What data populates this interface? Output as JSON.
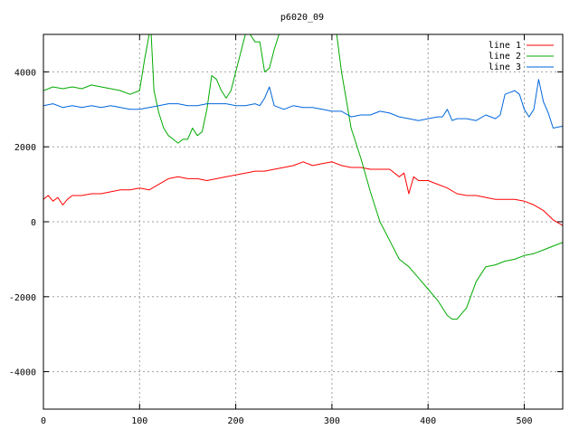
{
  "chart_data": {
    "type": "line",
    "title": "p6020_09",
    "xlabel": "",
    "ylabel": "",
    "xlim": [
      0,
      540
    ],
    "ylim": [
      -5000,
      5000
    ],
    "x_ticks": [
      0,
      100,
      200,
      300,
      400,
      500
    ],
    "y_ticks": [
      -4000,
      -2000,
      0,
      2000,
      4000
    ],
    "grid": true,
    "grid_style": "dotted",
    "legend_position": "top-right",
    "series": [
      {
        "name": "line 1",
        "color": "#ff0000",
        "x": [
          0,
          5,
          10,
          15,
          20,
          25,
          30,
          40,
          50,
          60,
          70,
          80,
          90,
          100,
          110,
          120,
          130,
          140,
          150,
          160,
          170,
          180,
          190,
          200,
          210,
          220,
          230,
          240,
          250,
          260,
          270,
          280,
          290,
          300,
          310,
          320,
          330,
          340,
          350,
          360,
          370,
          375,
          380,
          385,
          390,
          400,
          410,
          420,
          430,
          440,
          450,
          460,
          470,
          480,
          490,
          500,
          510,
          520,
          530,
          540
        ],
        "values": [
          600,
          700,
          550,
          650,
          450,
          600,
          700,
          700,
          750,
          750,
          800,
          850,
          850,
          900,
          850,
          1000,
          1150,
          1200,
          1150,
          1150,
          1100,
          1150,
          1200,
          1250,
          1300,
          1350,
          1350,
          1400,
          1450,
          1500,
          1600,
          1500,
          1550,
          1600,
          1500,
          1450,
          1450,
          1400,
          1400,
          1400,
          1200,
          1300,
          750,
          1200,
          1100,
          1100,
          1000,
          900,
          750,
          700,
          700,
          650,
          600,
          600,
          600,
          550,
          450,
          300,
          50,
          -100
        ]
      },
      {
        "name": "line 2",
        "color": "#00aa00",
        "x": [
          0,
          10,
          20,
          30,
          40,
          50,
          60,
          70,
          80,
          90,
          100,
          105,
          110,
          112,
          115,
          120,
          125,
          130,
          135,
          140,
          145,
          150,
          155,
          160,
          165,
          170,
          175,
          180,
          185,
          190,
          195,
          200,
          205,
          210,
          215,
          220,
          225,
          230,
          235,
          240,
          245,
          250,
          255,
          260,
          270,
          280,
          290,
          295,
          300,
          305,
          310,
          320,
          330,
          340,
          350,
          360,
          370,
          380,
          390,
          400,
          410,
          420,
          425,
          430,
          440,
          450,
          460,
          470,
          480,
          490,
          500,
          510,
          520,
          530,
          540
        ],
        "values": [
          3500,
          3600,
          3550,
          3600,
          3550,
          3650,
          3600,
          3550,
          3500,
          3400,
          3500,
          4300,
          5000,
          5000,
          3500,
          2900,
          2500,
          2300,
          2200,
          2100,
          2200,
          2200,
          2500,
          2300,
          2400,
          3000,
          3900,
          3800,
          3500,
          3300,
          3500,
          4000,
          4500,
          5000,
          5000,
          4800,
          4800,
          4000,
          4100,
          4600,
          5000,
          5000,
          5000,
          5000,
          5000,
          5000,
          5000,
          5000,
          5000,
          5000,
          4000,
          2500,
          1700,
          800,
          0,
          -500,
          -1000,
          -1200,
          -1500,
          -1800,
          -2100,
          -2500,
          -2600,
          -2600,
          -2300,
          -1600,
          -1200,
          -1150,
          -1050,
          -1000,
          -900,
          -850,
          -750,
          -650,
          -550
        ]
      },
      {
        "name": "line 3",
        "color": "#0066dd",
        "x": [
          0,
          10,
          20,
          30,
          40,
          50,
          60,
          70,
          80,
          90,
          100,
          110,
          120,
          130,
          140,
          150,
          160,
          170,
          180,
          190,
          200,
          210,
          220,
          225,
          230,
          235,
          240,
          250,
          260,
          270,
          280,
          290,
          300,
          310,
          320,
          330,
          340,
          350,
          360,
          370,
          380,
          390,
          400,
          410,
          415,
          420,
          425,
          430,
          440,
          450,
          460,
          470,
          475,
          480,
          485,
          490,
          495,
          500,
          505,
          510,
          515,
          520,
          525,
          530,
          540
        ],
        "values": [
          3100,
          3150,
          3050,
          3100,
          3050,
          3100,
          3050,
          3100,
          3050,
          3000,
          3000,
          3050,
          3100,
          3150,
          3150,
          3100,
          3100,
          3150,
          3150,
          3150,
          3100,
          3100,
          3150,
          3100,
          3300,
          3600,
          3100,
          3000,
          3100,
          3050,
          3050,
          3000,
          2950,
          2950,
          2800,
          2850,
          2850,
          2950,
          2900,
          2800,
          2750,
          2700,
          2750,
          2800,
          2800,
          3000,
          2700,
          2750,
          2750,
          2700,
          2850,
          2750,
          2850,
          3400,
          3450,
          3500,
          3400,
          3000,
          2800,
          3000,
          3800,
          3200,
          2900,
          2500,
          2550
        ]
      }
    ]
  }
}
